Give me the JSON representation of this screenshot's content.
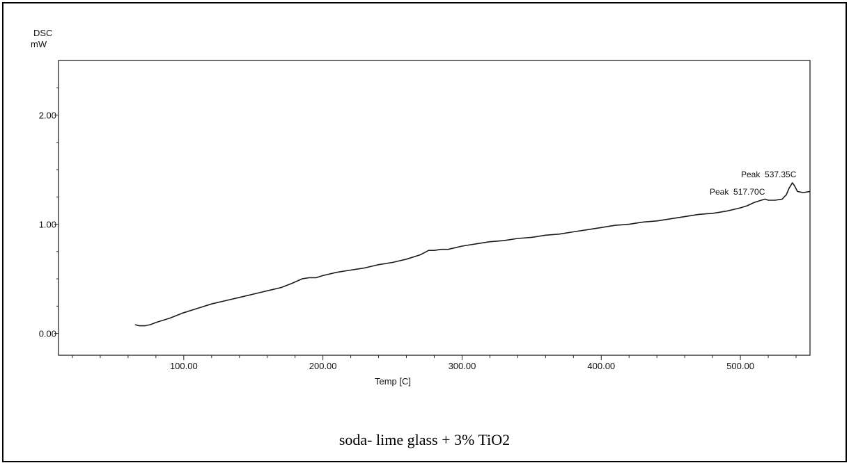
{
  "chart_data": {
    "type": "line",
    "title": "",
    "ylabel": "DSC",
    "yunit": "mW",
    "xlabel": "Temp  [C]",
    "xlim": [
      10,
      550
    ],
    "ylim": [
      -0.2,
      2.5
    ],
    "xticks": [
      100,
      200,
      300,
      400,
      500
    ],
    "xtick_labels": [
      "100.00",
      "200.00",
      "300.00",
      "400.00",
      "500.00"
    ],
    "yticks": [
      0,
      1,
      2
    ],
    "ytick_labels": [
      "0.00",
      "1.00",
      "2.00"
    ],
    "grid": false,
    "series": [
      {
        "x": [
          65,
          68,
          72,
          76,
          80,
          90,
          100,
          110,
          120,
          130,
          140,
          150,
          160,
          170,
          178,
          185,
          190,
          195,
          200,
          210,
          220,
          230,
          240,
          250,
          260,
          270,
          276,
          280,
          285,
          290,
          300,
          310,
          320,
          330,
          340,
          350,
          360,
          370,
          380,
          390,
          400,
          410,
          420,
          430,
          440,
          450,
          460,
          470,
          480,
          490,
          500,
          505,
          510,
          515,
          517.7,
          520,
          525,
          530,
          533,
          535,
          537.35,
          539,
          541,
          545,
          550
        ],
        "y": [
          0.08,
          0.07,
          0.07,
          0.08,
          0.1,
          0.14,
          0.19,
          0.23,
          0.27,
          0.3,
          0.33,
          0.36,
          0.39,
          0.42,
          0.46,
          0.5,
          0.51,
          0.51,
          0.53,
          0.56,
          0.58,
          0.6,
          0.63,
          0.65,
          0.68,
          0.72,
          0.76,
          0.76,
          0.77,
          0.77,
          0.8,
          0.82,
          0.84,
          0.85,
          0.87,
          0.88,
          0.9,
          0.91,
          0.93,
          0.95,
          0.97,
          0.99,
          1.0,
          1.02,
          1.03,
          1.05,
          1.07,
          1.09,
          1.1,
          1.12,
          1.15,
          1.17,
          1.2,
          1.22,
          1.23,
          1.22,
          1.22,
          1.23,
          1.27,
          1.33,
          1.38,
          1.35,
          1.3,
          1.29,
          1.3
        ]
      }
    ],
    "annotations": [
      {
        "text": "Peak  537.35C",
        "x": 537.35,
        "y": 1.38
      },
      {
        "text": "Peak  517.70C",
        "x": 517.7,
        "y": 1.23
      }
    ]
  },
  "caption": "soda- lime glass + 3% TiO2"
}
